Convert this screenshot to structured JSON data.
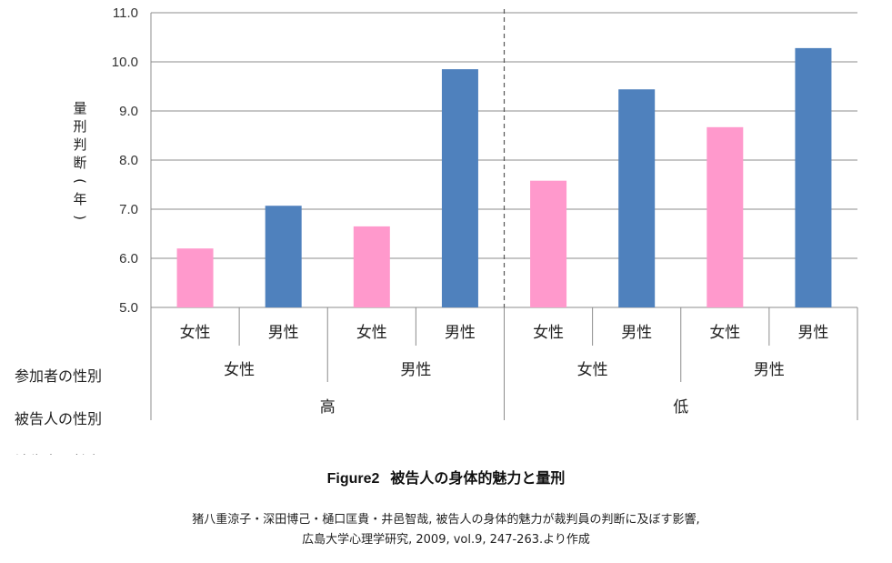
{
  "chart_data": {
    "type": "bar",
    "ylabel": "量刑判断(年)",
    "ylim": [
      5.0,
      11.0
    ],
    "yticks": [
      "5.0",
      "6.0",
      "7.0",
      "8.0",
      "9.0",
      "10.0",
      "11.0"
    ],
    "grid": true,
    "bars": [
      {
        "participant_sex": "女性",
        "defendant_sex": "女性",
        "attractiveness": "高",
        "value": 6.2,
        "color": "#ff99cc"
      },
      {
        "participant_sex": "女性",
        "defendant_sex": "男性",
        "attractiveness": "高",
        "value": 7.07,
        "color": "#4f81bd"
      },
      {
        "participant_sex": "男性",
        "defendant_sex": "女性",
        "attractiveness": "高",
        "value": 6.65,
        "color": "#ff99cc"
      },
      {
        "participant_sex": "男性",
        "defendant_sex": "男性",
        "attractiveness": "高",
        "value": 9.85,
        "color": "#4f81bd"
      },
      {
        "participant_sex": "女性",
        "defendant_sex": "女性",
        "attractiveness": "低",
        "value": 7.58,
        "color": "#ff99cc"
      },
      {
        "participant_sex": "女性",
        "defendant_sex": "男性",
        "attractiveness": "低",
        "value": 9.44,
        "color": "#4f81bd"
      },
      {
        "participant_sex": "男性",
        "defendant_sex": "女性",
        "attractiveness": "低",
        "value": 8.67,
        "color": "#ff99cc"
      },
      {
        "participant_sex": "男性",
        "defendant_sex": "男性",
        "attractiveness": "低",
        "value": 10.28,
        "color": "#4f81bd"
      }
    ],
    "row_labels": [
      "参加者の性別",
      "被告人の性別",
      "被告人の魅力"
    ],
    "divider": "dashed line between 高 and 低 groups"
  },
  "figure": {
    "number": "Figure2",
    "title": "被告人の身体的魅力と量刑",
    "source_line1": "猪八重涼子・深田博己・樋口匡貴・井邑智哉, 被告人の身体的魅力が裁判員の判断に及ぼす影響,",
    "source_line2": "広島大学心理学研究, 2009, vol.9, 247-263.より作成"
  }
}
